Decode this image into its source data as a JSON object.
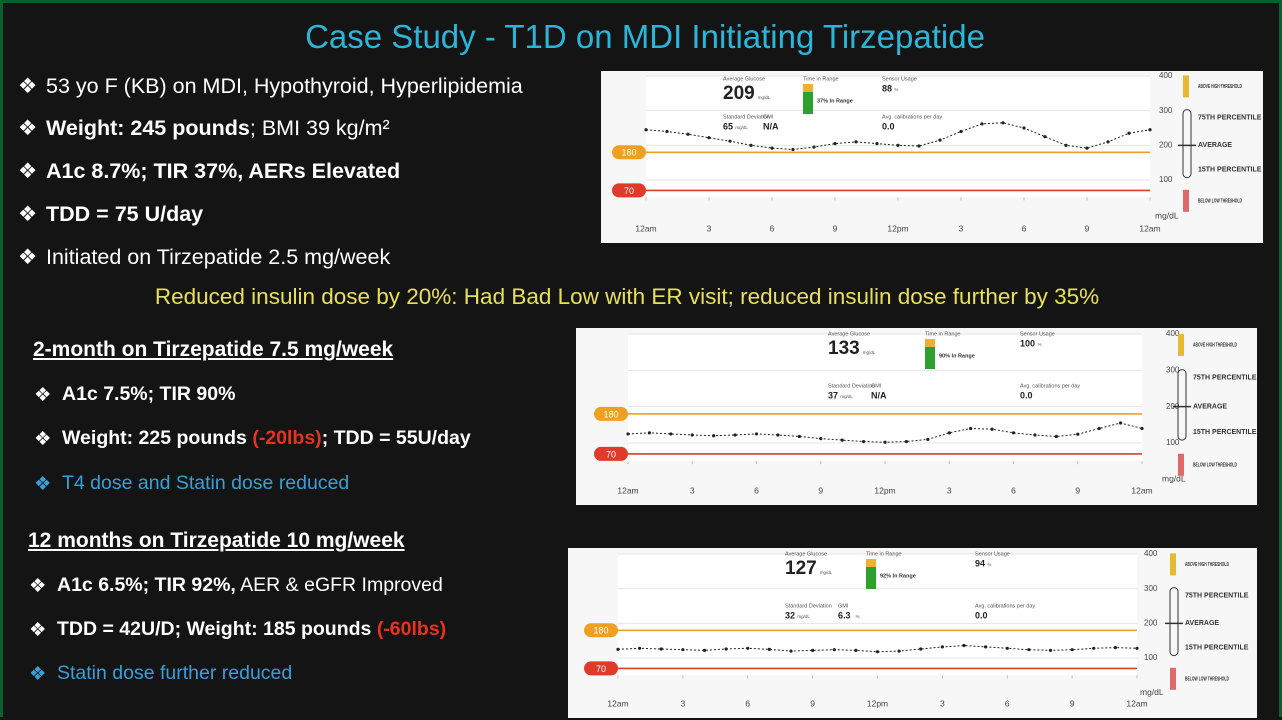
{
  "title": "Case Study - T1D on MDI Initiating Tirzepatide",
  "intro": {
    "bullets": [
      [
        {
          "text": "53 yo F (KB) on MDI, Hypothyroid, Hyperlipidemia"
        }
      ],
      [
        {
          "text": "Weight: 245 pounds",
          "bold": true
        },
        {
          "text": "; BMI 39 kg/m²"
        }
      ],
      [
        {
          "text": "A1c 8.7%; TIR 37%, AERs Elevated",
          "bold": true
        }
      ],
      [
        {
          "text": "TDD = 75 U/day",
          "bold": true
        }
      ],
      [
        {
          "text": "Initiated on Tirzepatide 2.5 mg/week"
        }
      ]
    ]
  },
  "note": "Reduced insulin dose by 20%: Had Bad Low with ER visit; reduced insulin dose further by 35%",
  "sections": [
    {
      "heading": "2-month on Tirzepatide 7.5 mg/week",
      "bullets": [
        [
          {
            "text": "A1c 7.5%; TIR 90%",
            "bold": true
          }
        ],
        [
          {
            "text": "Weight: 225 pounds ",
            "bold": true
          },
          {
            "text": "(-20lbs)",
            "bold": true,
            "color": "#e8321e"
          },
          {
            "text": "; TDD = 55U/day",
            "bold": true
          }
        ],
        [
          {
            "text": "T4 dose and Statin dose reduced",
            "color": "#3a9fd6"
          }
        ]
      ]
    },
    {
      "heading": "12 months on Tirzepatide 10 mg/week",
      "bullets": [
        [
          {
            "text": "A1c 6.5%; TIR 92%,",
            "bold": true
          },
          {
            "text": " AER & eGFR Improved"
          }
        ],
        [
          {
            "text": "TDD = 42U/D; Weight: 185 pounds ",
            "bold": true
          },
          {
            "text": "(-60lbs)",
            "bold": true,
            "color": "#e8321e"
          }
        ],
        [
          {
            "text": "Statin dose further reduced",
            "color": "#3a9fd6"
          }
        ]
      ]
    }
  ],
  "chart_data": [
    {
      "type": "line",
      "stats": [
        {
          "label": "Average Glucose",
          "value": "209",
          "unit": "mg/dL"
        },
        {
          "label": "Standard Deviation",
          "value": "65",
          "unit": "mg/dL"
        },
        {
          "label": "GMI",
          "value": "N/A"
        },
        {
          "label": "Sensor Usage",
          "value": "88",
          "unit": "%"
        },
        {
          "label": "Avg. calibrations per day",
          "value": "0.0"
        }
      ],
      "tir": {
        "label": "Time in Range",
        "in_range": "37% In Range"
      },
      "x": [
        0,
        1,
        2,
        3,
        4,
        5,
        6,
        7,
        8,
        9,
        10,
        11,
        12,
        13,
        14,
        15,
        16,
        17,
        18,
        19,
        20,
        21,
        22,
        23,
        24
      ],
      "series": [
        {
          "color": "#222222",
          "values": [
            245,
            240,
            232,
            222,
            212,
            200,
            192,
            188,
            195,
            205,
            210,
            205,
            200,
            198,
            215,
            240,
            262,
            265,
            250,
            225,
            200,
            192,
            210,
            235,
            245
          ]
        }
      ],
      "xlim": [
        0,
        24
      ],
      "xticks": [
        {
          "value": 0,
          "label": "12am"
        },
        3,
        6,
        9,
        {
          "value": 12,
          "label": "12pm"
        },
        {
          "value": 15,
          "label": "3"
        },
        {
          "value": 18,
          "label": "6"
        },
        {
          "value": 21,
          "label": "9"
        },
        {
          "value": 24,
          "label": "12am"
        }
      ],
      "ylim": [
        50,
        400
      ],
      "yticks": [
        100,
        200,
        300,
        400
      ],
      "y_unit": "mg/dL",
      "thresholds": [
        {
          "value": 180,
          "color": "#f0a020"
        },
        {
          "value": 70,
          "color": "#e03a2a"
        }
      ],
      "legend": [
        {
          "label": "ABOVE HIGH THRESHOLD",
          "color": "#e8b830"
        },
        {
          "label": "75TH PERCENTILE"
        },
        {
          "label": "AVERAGE"
        },
        {
          "label": "15TH PERCENTILE"
        },
        {
          "label": "BELOW LOW THRESHOLD",
          "color": "#e06a6a"
        }
      ]
    },
    {
      "type": "line",
      "stats": [
        {
          "label": "Average Glucose",
          "value": "133",
          "unit": "mg/dL"
        },
        {
          "label": "Standard Deviation",
          "value": "37",
          "unit": "mg/dL"
        },
        {
          "label": "GMI",
          "value": "N/A"
        },
        {
          "label": "Sensor Usage",
          "value": "100",
          "unit": "%"
        },
        {
          "label": "Avg. calibrations per day",
          "value": "0.0"
        }
      ],
      "tir": {
        "label": "Time in Range",
        "in_range": "90% In Range"
      },
      "x": [
        0,
        1,
        2,
        3,
        4,
        5,
        6,
        7,
        8,
        9,
        10,
        11,
        12,
        13,
        14,
        15,
        16,
        17,
        18,
        19,
        20,
        21,
        22,
        23,
        24
      ],
      "series": [
        {
          "color": "#222222",
          "values": [
            125,
            128,
            125,
            122,
            120,
            122,
            125,
            122,
            118,
            112,
            108,
            104,
            102,
            104,
            110,
            128,
            140,
            138,
            128,
            122,
            118,
            124,
            140,
            155,
            140
          ]
        }
      ],
      "xlim": [
        0,
        24
      ],
      "xticks": [
        {
          "value": 0,
          "label": "12am"
        },
        3,
        6,
        9,
        {
          "value": 12,
          "label": "12pm"
        },
        {
          "value": 15,
          "label": "3"
        },
        {
          "value": 18,
          "label": "6"
        },
        {
          "value": 21,
          "label": "9"
        },
        {
          "value": 24,
          "label": "12am"
        }
      ],
      "ylim": [
        50,
        400
      ],
      "yticks": [
        100,
        200,
        300,
        400
      ],
      "y_unit": "mg/dL",
      "thresholds": [
        {
          "value": 180,
          "color": "#f0a020"
        },
        {
          "value": 70,
          "color": "#e03a2a"
        }
      ],
      "legend": [
        {
          "label": "ABOVE HIGH THRESHOLD",
          "color": "#e8b830"
        },
        {
          "label": "75TH PERCENTILE"
        },
        {
          "label": "AVERAGE"
        },
        {
          "label": "15TH PERCENTILE"
        },
        {
          "label": "BELOW LOW THRESHOLD",
          "color": "#e06a6a"
        }
      ]
    },
    {
      "type": "line",
      "stats": [
        {
          "label": "Average Glucose",
          "value": "127",
          "unit": "mg/dL"
        },
        {
          "label": "Standard Deviation",
          "value": "32",
          "unit": "mg/dL"
        },
        {
          "label": "GMI",
          "value": "6.3",
          "unit": "%"
        },
        {
          "label": "Sensor Usage",
          "value": "94",
          "unit": "%"
        },
        {
          "label": "Avg. calibrations per day",
          "value": "0.0"
        }
      ],
      "tir": {
        "label": "Time in Range",
        "in_range": "92% In Range"
      },
      "x": [
        0,
        1,
        2,
        3,
        4,
        5,
        6,
        7,
        8,
        9,
        10,
        11,
        12,
        13,
        14,
        15,
        16,
        17,
        18,
        19,
        20,
        21,
        22,
        23,
        24
      ],
      "series": [
        {
          "color": "#222222",
          "values": [
            125,
            128,
            126,
            124,
            122,
            126,
            128,
            125,
            120,
            122,
            124,
            122,
            118,
            120,
            126,
            132,
            136,
            132,
            128,
            124,
            122,
            124,
            128,
            130,
            128
          ]
        }
      ],
      "xlim": [
        0,
        24
      ],
      "xticks": [
        {
          "value": 0,
          "label": "12am"
        },
        3,
        6,
        9,
        {
          "value": 12,
          "label": "12pm"
        },
        {
          "value": 15,
          "label": "3"
        },
        {
          "value": 18,
          "label": "6"
        },
        {
          "value": 21,
          "label": "9"
        },
        {
          "value": 24,
          "label": "12am"
        }
      ],
      "ylim": [
        50,
        400
      ],
      "yticks": [
        100,
        200,
        300,
        400
      ],
      "y_unit": "mg/dL",
      "thresholds": [
        {
          "value": 180,
          "color": "#f0a020"
        },
        {
          "value": 70,
          "color": "#e03a2a"
        }
      ],
      "legend": [
        {
          "label": "ABOVE HIGH THRESHOLD",
          "color": "#e8b830"
        },
        {
          "label": "75TH PERCENTILE"
        },
        {
          "label": "AVERAGE"
        },
        {
          "label": "15TH PERCENTILE"
        },
        {
          "label": "BELOW LOW THRESHOLD",
          "color": "#e06a6a"
        }
      ]
    }
  ]
}
